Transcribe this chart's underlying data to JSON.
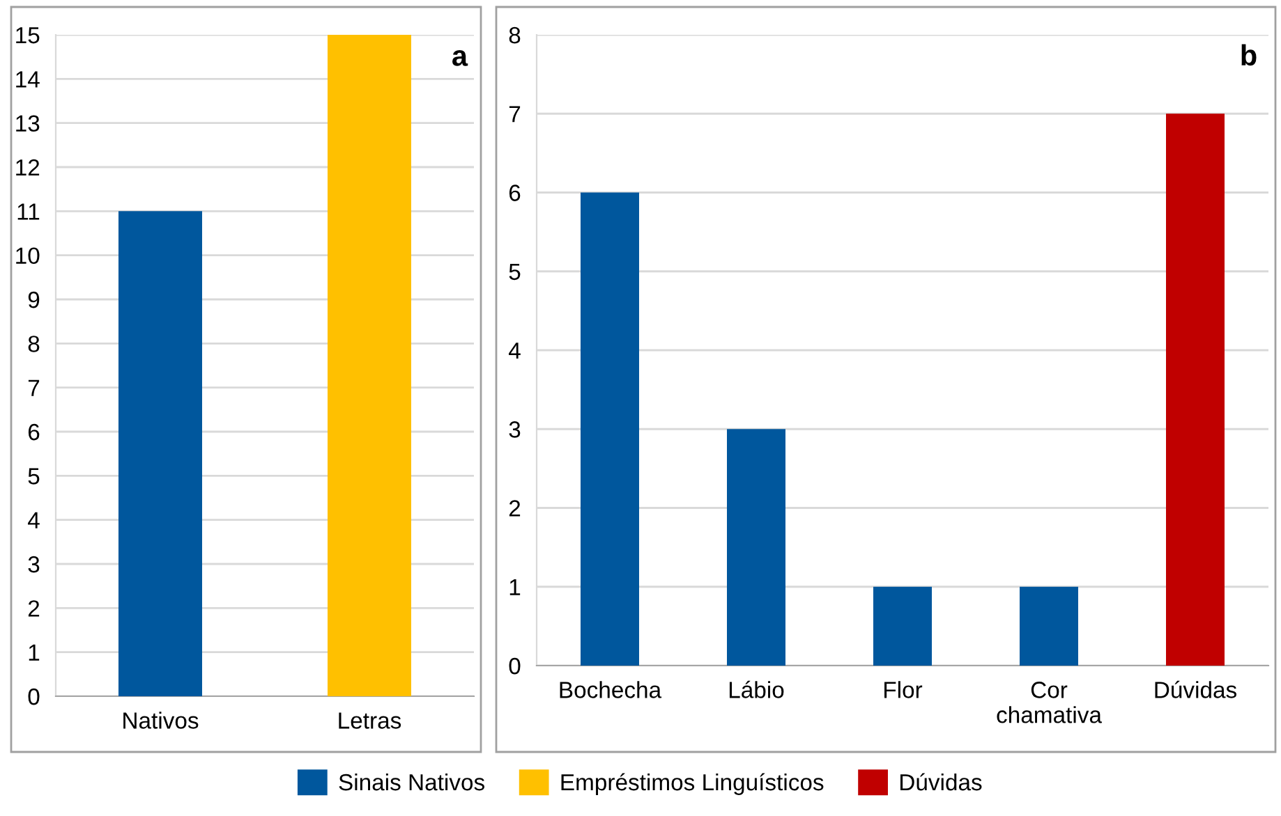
{
  "chart_data": [
    {
      "type": "bar",
      "categories": [
        "Nativos",
        "Letras"
      ],
      "ylim": [
        0,
        15
      ],
      "yticks": [
        0,
        1,
        2,
        3,
        4,
        5,
        6,
        7,
        8,
        9,
        10,
        11,
        12,
        13,
        14,
        15
      ],
      "grid": "y",
      "legend": "bottom",
      "annotations": [
        "a"
      ],
      "series": [
        {
          "name": "Sinais Nativos",
          "color": "#00579d",
          "values": [
            11,
            null
          ]
        },
        {
          "name": "Empréstimos Linguísticos",
          "color": "#ffc000",
          "values": [
            null,
            15
          ]
        }
      ]
    },
    {
      "type": "bar",
      "categories": [
        "Bochecha",
        "Lábio",
        "Flor",
        "Cor chamativa",
        "Dúvidas"
      ],
      "ylim": [
        0,
        8
      ],
      "yticks": [
        0,
        1,
        2,
        3,
        4,
        5,
        6,
        7,
        8
      ],
      "grid": "y",
      "legend": "bottom",
      "annotations": [
        "b"
      ],
      "series": [
        {
          "name": "Sinais Nativos",
          "color": "#00579d",
          "values": [
            6,
            3,
            1,
            1,
            null
          ]
        },
        {
          "name": "Dúvidas",
          "color": "#c00000",
          "values": [
            null,
            null,
            null,
            null,
            7
          ]
        }
      ]
    }
  ]
}
